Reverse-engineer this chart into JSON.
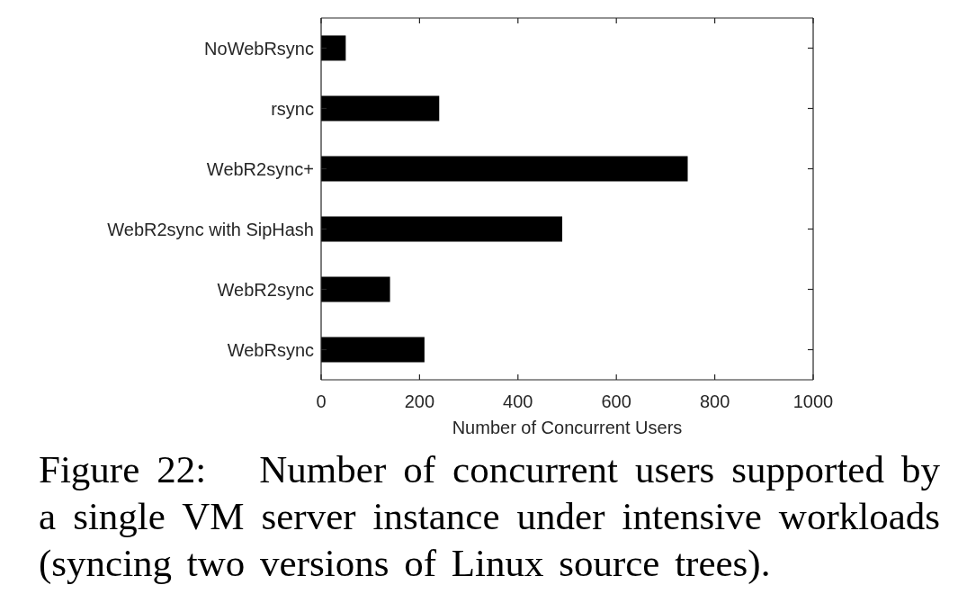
{
  "chart_data": {
    "type": "bar",
    "orientation": "horizontal",
    "xlabel": "Number of Concurrent Users",
    "categories": [
      "NoWebRsync",
      "rsync",
      "WebR2sync+",
      "WebR2sync with SipHash",
      "WebR2sync",
      "WebRsync"
    ],
    "values": [
      50,
      240,
      745,
      490,
      140,
      210
    ],
    "color": "#000000",
    "xlim": [
      0,
      1000
    ],
    "xticks": [
      0,
      200,
      400,
      600,
      800,
      1000
    ],
    "annotations": [
      "Figure 22: Number of concurrent users supported by a single VM server instance under intensive workloads (syncing two versions of Linux source trees)."
    ]
  }
}
